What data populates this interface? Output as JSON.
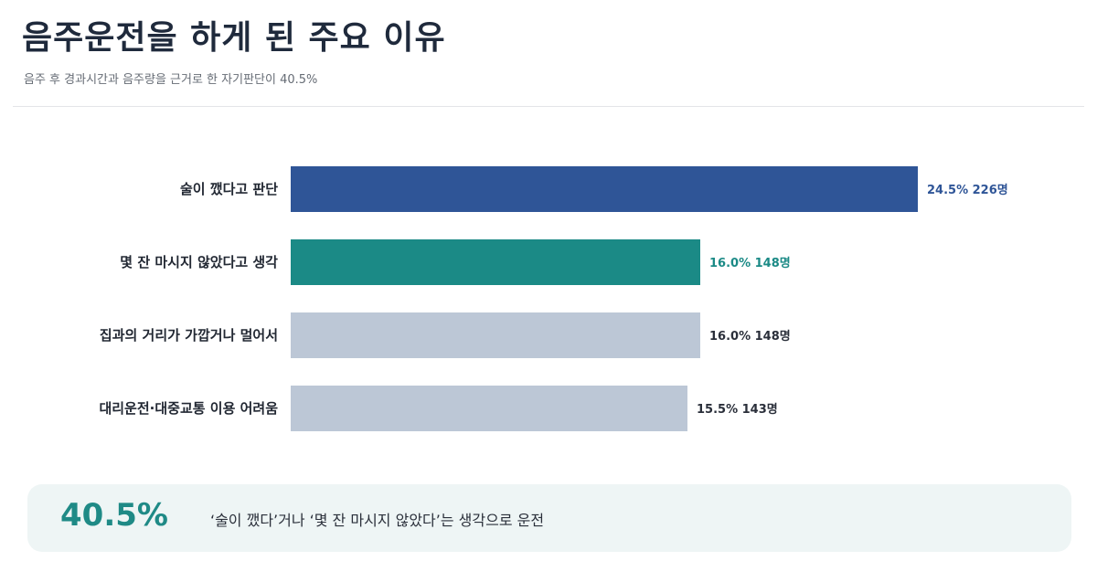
{
  "header": {
    "title": "음주운전을 하게 된 주요 이유",
    "subtitle": "음주 후 경과시간과 음주량을 근거로 한 자기판단이 40.5%"
  },
  "chart_data": {
    "type": "bar",
    "orientation": "horizontal",
    "title": "음주운전을 하게 된 주요 이유",
    "categories": [
      "술이 깼다고 판단",
      "몇 잔 마시지 않았다고 생각",
      "집과의 거리가 가깝거나 멀어서",
      "대리운전·대중교통 이용 어려움"
    ],
    "values": [
      24.5,
      16.0,
      16.0,
      15.5
    ],
    "value_labels": [
      "24.5%",
      "16.0%",
      "16.0%",
      "15.5%"
    ],
    "counts": [
      "226명",
      "148명",
      "148명",
      "143명"
    ],
    "colors": [
      "#2f5597",
      "#1b8a86",
      "#bcc7d6",
      "#bcc7d6"
    ],
    "label_colors": [
      "#2f5597",
      "#1b8a86",
      "#2a2f3a",
      "#2a2f3a"
    ],
    "xlim": [
      0,
      24.5
    ],
    "grid": false,
    "legend": "none"
  },
  "callout": {
    "percent": "40.5%",
    "text": "‘술이 깼다’거나 ‘몇 잔 마시지 않았다’는 생각으로 운전"
  }
}
